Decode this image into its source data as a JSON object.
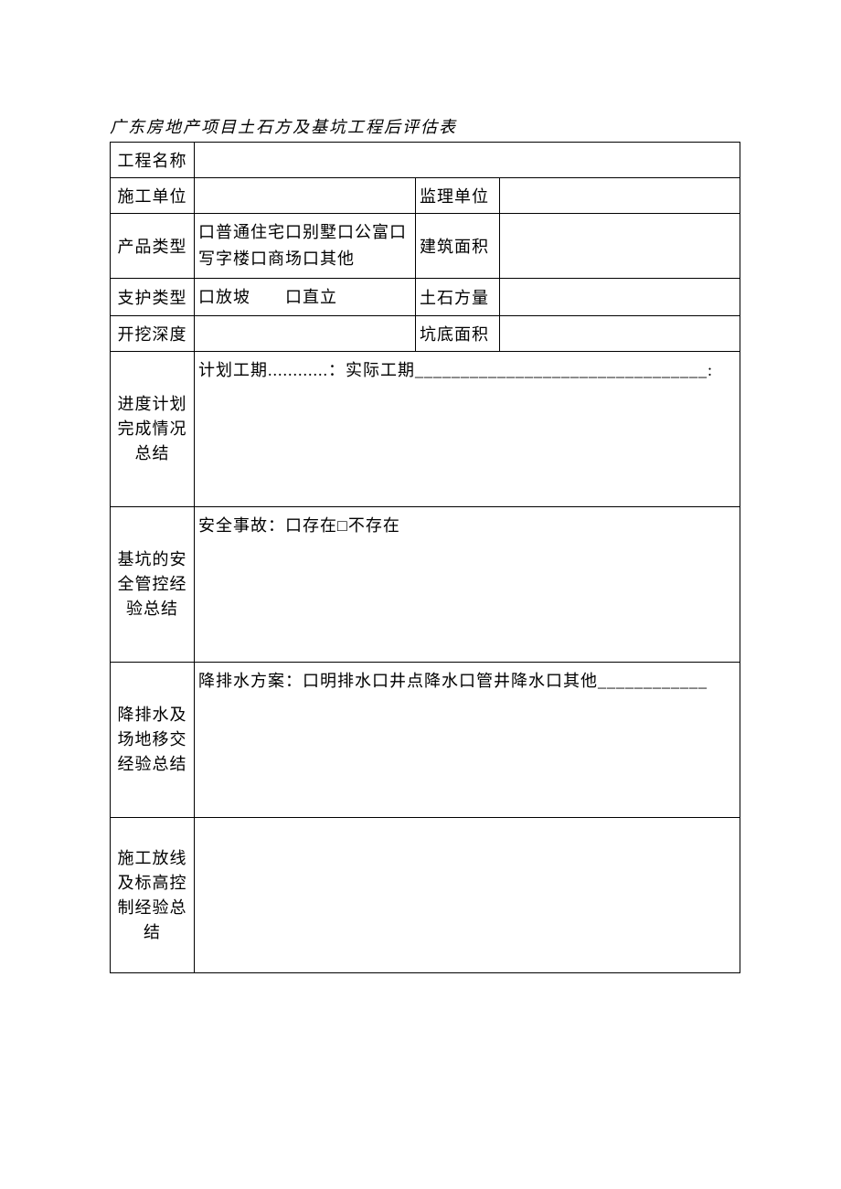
{
  "document": {
    "title": "广东房地产项目土石方及基坑工程后评估表"
  },
  "row1": {
    "label": "工程名称",
    "value": ""
  },
  "row2": {
    "label1": "施工单位",
    "value1": "",
    "label2": "监理单位",
    "value2": ""
  },
  "row3": {
    "label1": "产品类型",
    "value1": "口普通住宅口别墅口公富口写字楼口商场口其他",
    "label2": "建筑面积",
    "value2": ""
  },
  "row4": {
    "label1": "支护类型",
    "value1": "口放坡　　口直立",
    "label2": "土石方量",
    "value2": ""
  },
  "row5": {
    "label1": "开挖深度",
    "value1": "",
    "label2": "坑底面积",
    "value2": ""
  },
  "row6": {
    "label": "进度计划完成情况总结",
    "content": "计划工期............：实际工期________________________________:"
  },
  "row7": {
    "label": "基坑的安全管控经验总结",
    "content": "安全事故：口存在□不存在"
  },
  "row8": {
    "label": "降排水及场地移交经验总结",
    "content": "降排水方案：口明排水口井点降水口管井降水口其他____________"
  },
  "row9": {
    "label": "施工放线及标高控制经验总结",
    "content": ""
  }
}
